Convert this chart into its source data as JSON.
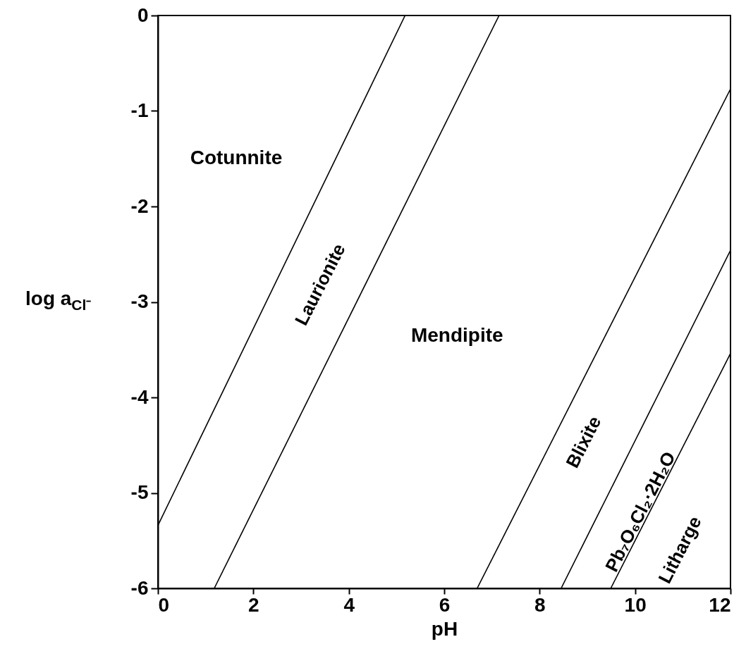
{
  "chart_data": {
    "type": "line",
    "xlabel": "pH",
    "ylabel": "log a$_{Cl⁻}$",
    "xlim": [
      0,
      12
    ],
    "xticks": [
      0,
      2,
      4,
      6,
      8,
      10,
      12
    ],
    "ylim": [
      -6,
      0
    ],
    "yticks": [
      -6,
      -5,
      -4,
      -3,
      -2,
      -1,
      0
    ],
    "grid": false,
    "legend": false,
    "marker": "none",
    "line_style": "solid",
    "series": [
      {
        "color": "#000000",
        "x": [
          0,
          5.18
        ],
        "values": [
          -5.34,
          0
        ]
      },
      {
        "color": "#000000",
        "x": [
          1.18,
          7.15
        ],
        "values": [
          -6,
          0
        ]
      },
      {
        "color": "#000000",
        "x": [
          6.69,
          12
        ],
        "values": [
          -6,
          -0.77
        ]
      },
      {
        "color": "#000000",
        "x": [
          8.45,
          12
        ],
        "values": [
          -6,
          -2.46
        ]
      },
      {
        "color": "#000000",
        "x": [
          9.49,
          12
        ],
        "values": [
          -6,
          -3.54
        ]
      }
    ],
    "annotations": [
      "Cotunnite",
      "Laurionite",
      "Mendipite",
      "Blixite",
      "Pb₇O₆Cl₂·2H₂O",
      "Litharge"
    ]
  }
}
